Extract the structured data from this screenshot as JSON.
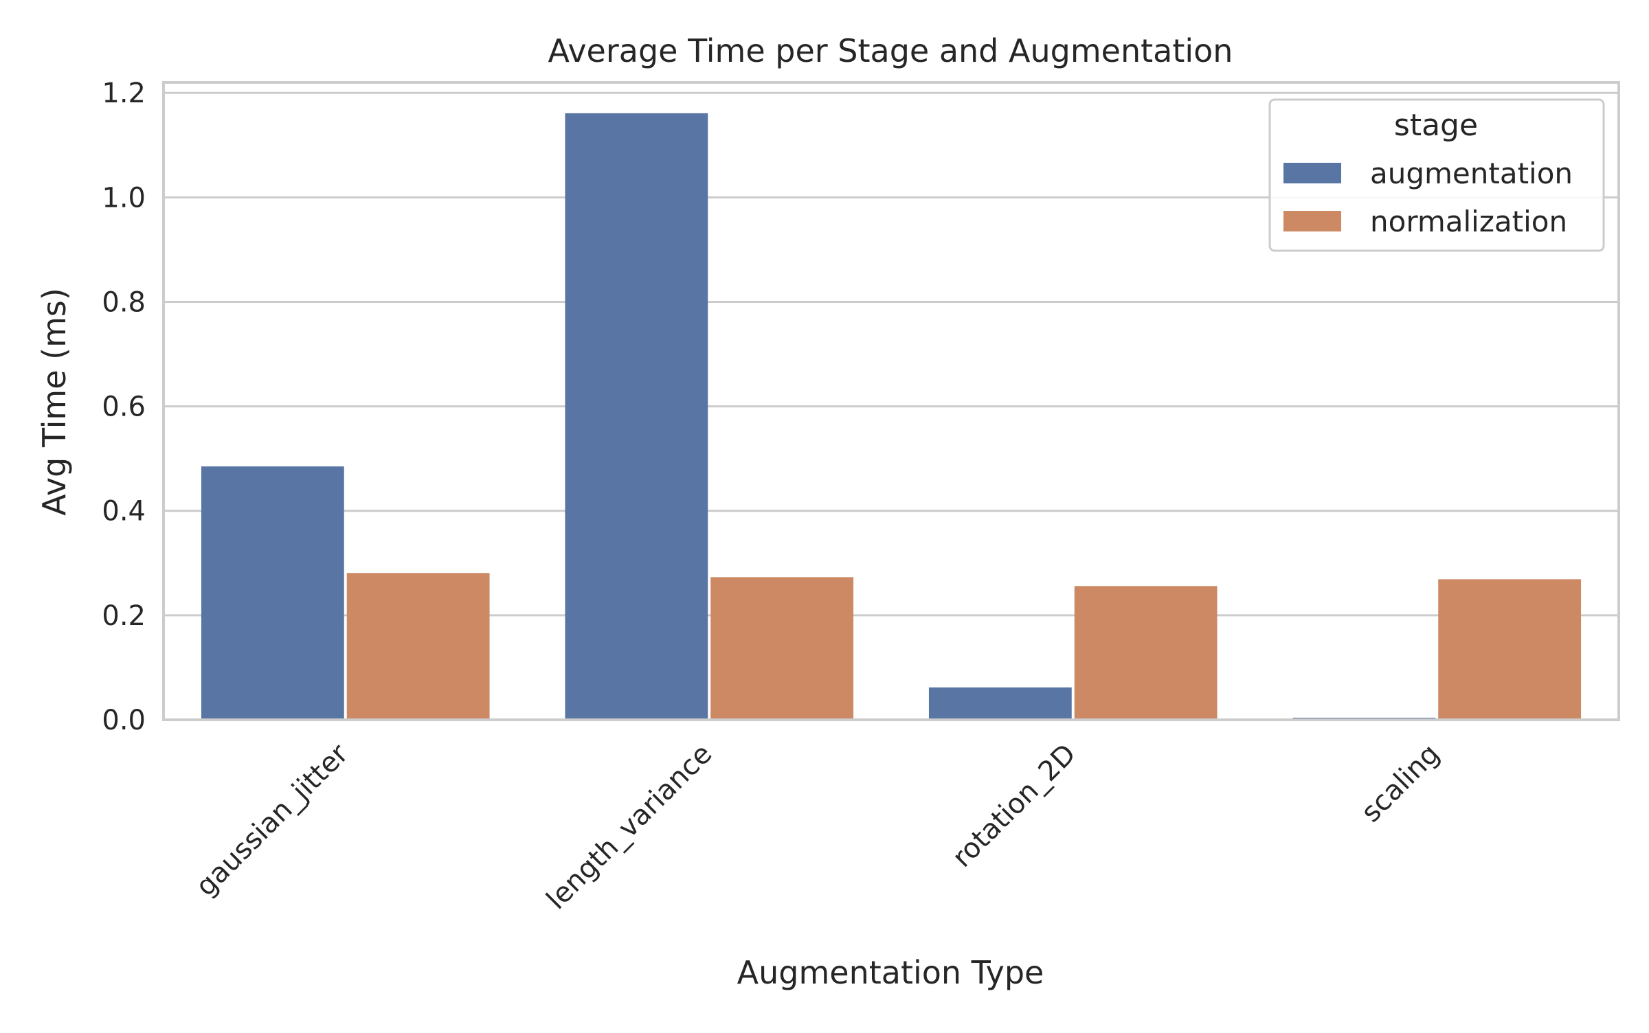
{
  "chart_data": {
    "type": "bar",
    "title": "Average Time per Stage and Augmentation",
    "xlabel": "Augmentation Type",
    "ylabel": "Avg Time (ms)",
    "categories": [
      "gaussian_jitter",
      "length_variance",
      "rotation_2D",
      "scaling"
    ],
    "series": [
      {
        "name": "augmentation",
        "color": "#5975a4",
        "values": [
          0.485,
          1.161,
          0.062,
          0.004
        ]
      },
      {
        "name": "normalization",
        "color": "#cc8963",
        "values": [
          0.281,
          0.273,
          0.256,
          0.269
        ]
      }
    ],
    "ylim": [
      0,
      1.22
    ],
    "yticks": [
      0.0,
      0.2,
      0.4,
      0.6,
      0.8,
      1.0,
      1.2
    ],
    "ytick_labels": [
      "0.0",
      "0.2",
      "0.4",
      "0.6",
      "0.8",
      "1.0",
      "1.2"
    ],
    "grid": "y",
    "legend": {
      "title": "stage",
      "position": "top-right"
    }
  }
}
